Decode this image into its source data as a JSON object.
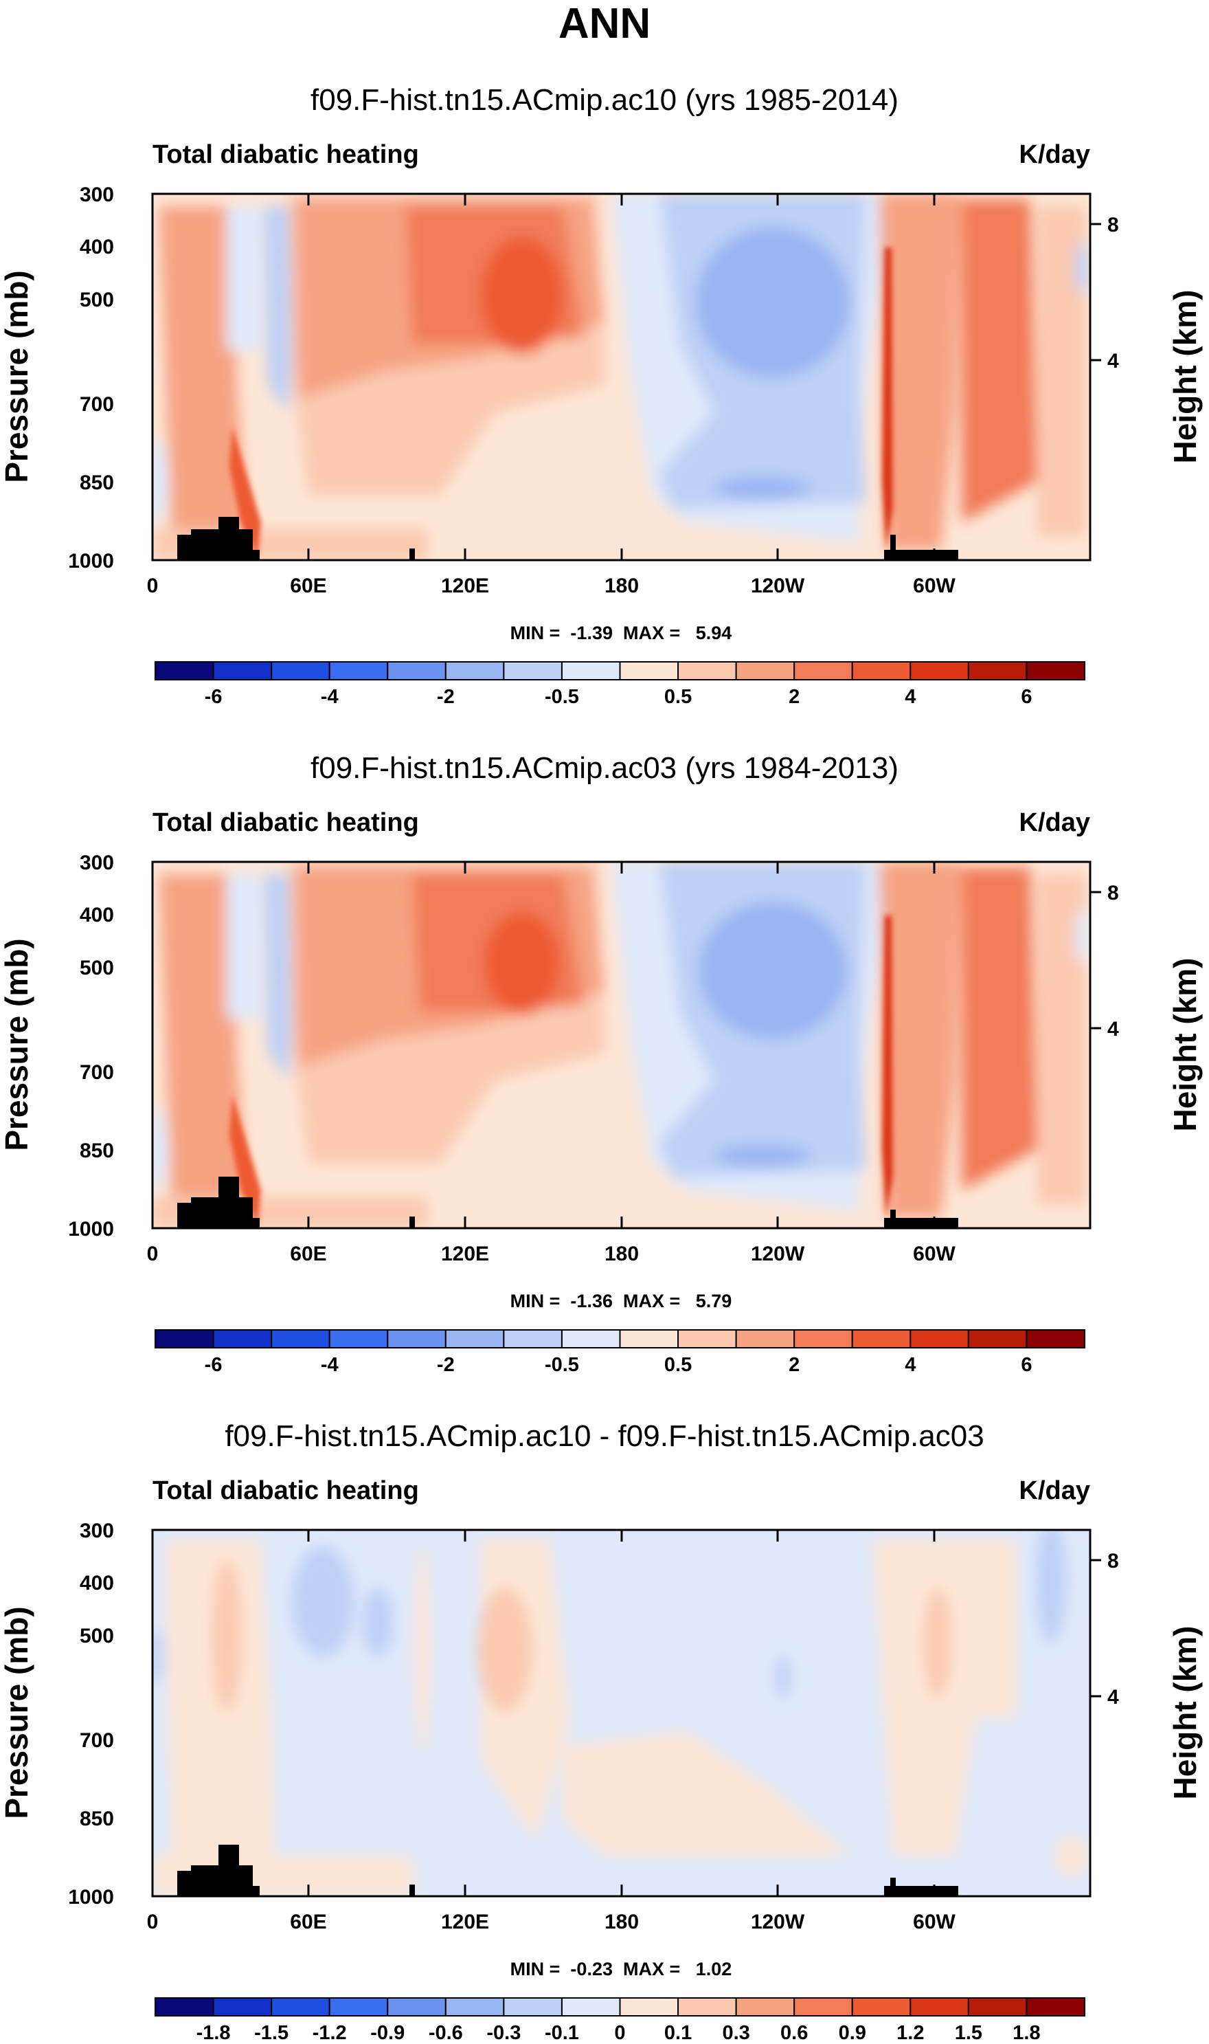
{
  "page": {
    "title": "ANN"
  },
  "chart_data": [
    {
      "type": "contour",
      "title": "f09.F-hist.tn15.ACmip.ac10 (yrs 1985-2014)",
      "left_label": "Total diabatic heating",
      "right_label": "K/day",
      "ylabel": "Pressure (mb)",
      "ylabel_right": "Height (km)",
      "x_ticks": [
        "0",
        "60E",
        "120E",
        "180",
        "120W",
        "60W"
      ],
      "y_ticks": [
        "300",
        "400",
        "500",
        "700",
        "850",
        "1000"
      ],
      "y_ticks_right": [
        "8",
        "4"
      ],
      "stats": "MIN =  -1.39  MAX =   5.94",
      "colorbar_labels": [
        "-6",
        "-4",
        "-2",
        "-0.5",
        "0.5",
        "2",
        "4",
        "6"
      ],
      "colorbar_colors": [
        "#08087a",
        "#1030c8",
        "#1f4fe0",
        "#3a6ef0",
        "#6b93ef",
        "#99b5f2",
        "#bdd0f6",
        "#dfe9fb",
        "#fde6d6",
        "#fbc9b0",
        "#f6a382",
        "#f27c58",
        "#ee5a32",
        "#dc3616",
        "#b51d08",
        "#8b0000"
      ]
    },
    {
      "type": "contour",
      "title": "f09.F-hist.tn15.ACmip.ac03 (yrs 1984-2013)",
      "left_label": "Total diabatic heating",
      "right_label": "K/day",
      "ylabel": "Pressure (mb)",
      "ylabel_right": "Height (km)",
      "x_ticks": [
        "0",
        "60E",
        "120E",
        "180",
        "120W",
        "60W"
      ],
      "y_ticks": [
        "300",
        "400",
        "500",
        "700",
        "850",
        "1000"
      ],
      "y_ticks_right": [
        "8",
        "4"
      ],
      "stats": "MIN =  -1.36  MAX =   5.79",
      "colorbar_labels": [
        "-6",
        "-4",
        "-2",
        "-0.5",
        "0.5",
        "2",
        "4",
        "6"
      ],
      "colorbar_colors": [
        "#08087a",
        "#1030c8",
        "#1f4fe0",
        "#3a6ef0",
        "#6b93ef",
        "#99b5f2",
        "#bdd0f6",
        "#dfe9fb",
        "#fde6d6",
        "#fbc9b0",
        "#f6a382",
        "#f27c58",
        "#ee5a32",
        "#dc3616",
        "#b51d08",
        "#8b0000"
      ]
    },
    {
      "type": "contour",
      "title": "f09.F-hist.tn15.ACmip.ac10 - f09.F-hist.tn15.ACmip.ac03",
      "left_label": "Total diabatic heating",
      "right_label": "K/day",
      "ylabel": "Pressure (mb)",
      "ylabel_right": "Height (km)",
      "x_ticks": [
        "0",
        "60E",
        "120E",
        "180",
        "120W",
        "60W"
      ],
      "y_ticks": [
        "300",
        "400",
        "500",
        "700",
        "850",
        "1000"
      ],
      "y_ticks_right": [
        "8",
        "4"
      ],
      "stats": "MIN =  -0.23  MAX =   1.02",
      "colorbar_labels": [
        "-1.8",
        "-1.5",
        "-1.2",
        "-0.9",
        "-0.6",
        "-0.3",
        "-0.1",
        "0",
        "0.1",
        "0.3",
        "0.6",
        "0.9",
        "1.2",
        "1.5",
        "1.8"
      ],
      "colorbar_colors": [
        "#08087a",
        "#1030c8",
        "#1f4fe0",
        "#3a6ef0",
        "#6b93ef",
        "#99b5f2",
        "#bdd0f6",
        "#dfe9fb",
        "#fde6d6",
        "#fbc9b0",
        "#f6a382",
        "#f27c58",
        "#ee5a32",
        "#dc3616",
        "#b51d08",
        "#8b0000"
      ]
    }
  ]
}
